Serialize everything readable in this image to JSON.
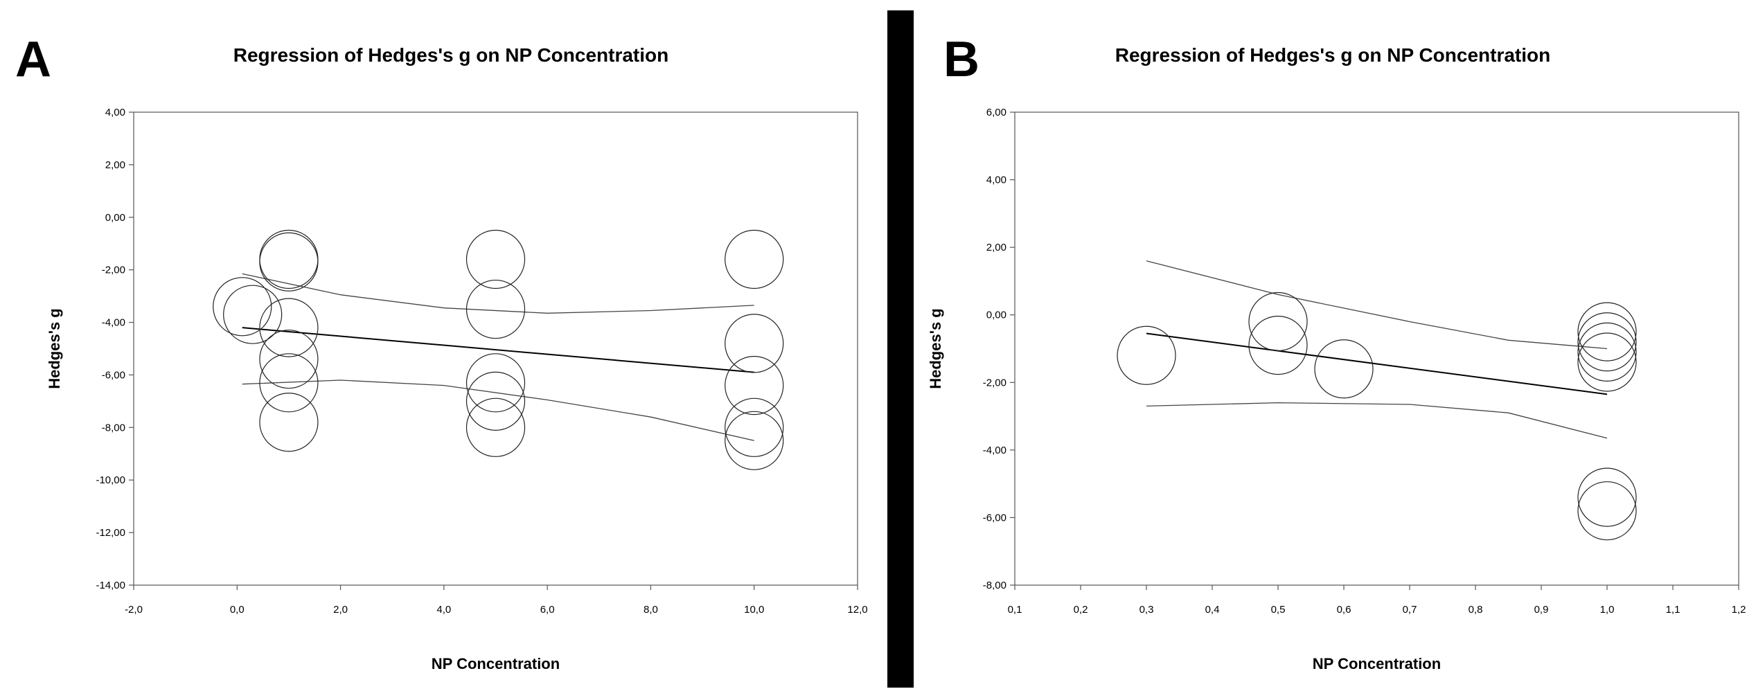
{
  "chart_data": [
    {
      "panel_label": "A",
      "type": "scatter",
      "title": "Regression of Hedges's g on NP Concentration",
      "xlabel": "NP Concentration",
      "ylabel": "Hedges's g",
      "xlim": [
        -2,
        12
      ],
      "ylim": [
        -14,
        4
      ],
      "x_ticks": [
        -2,
        0,
        2,
        4,
        6,
        8,
        10,
        12
      ],
      "x_tick_labels": [
        "-2,0",
        "0,0",
        "2,0",
        "4,0",
        "6,0",
        "8,0",
        "10,0",
        "12,0"
      ],
      "y_ticks": [
        4,
        2,
        0,
        -2,
        -4,
        -6,
        -8,
        -10,
        -12,
        -14
      ],
      "y_tick_labels": [
        "4,00",
        "2,00",
        "0,00",
        "-2,00",
        "-4,00",
        "-6,00",
        "-8,00",
        "-10,00",
        "-12,00",
        "-14,00"
      ],
      "points": [
        {
          "x": 0.1,
          "y": -3.4
        },
        {
          "x": 0.3,
          "y": -3.7
        },
        {
          "x": 1.0,
          "y": -1.6
        },
        {
          "x": 1.0,
          "y": -1.7
        },
        {
          "x": 1.0,
          "y": -4.2
        },
        {
          "x": 1.0,
          "y": -5.4
        },
        {
          "x": 1.0,
          "y": -6.3
        },
        {
          "x": 1.0,
          "y": -7.8
        },
        {
          "x": 5.0,
          "y": -1.6
        },
        {
          "x": 5.0,
          "y": -3.5
        },
        {
          "x": 5.0,
          "y": -6.3
        },
        {
          "x": 5.0,
          "y": -7.0
        },
        {
          "x": 5.0,
          "y": -8.0
        },
        {
          "x": 10.0,
          "y": -1.6
        },
        {
          "x": 10.0,
          "y": -4.8
        },
        {
          "x": 10.0,
          "y": -6.4
        },
        {
          "x": 10.0,
          "y": -8.0
        },
        {
          "x": 10.0,
          "y": -8.5
        }
      ],
      "regression_line": {
        "x": [
          0.1,
          10.0
        ],
        "y": [
          -4.2,
          -5.9
        ]
      },
      "ci_upper": {
        "x": [
          0.1,
          2.0,
          4.0,
          6.0,
          8.0,
          10.0
        ],
        "y": [
          -2.15,
          -2.95,
          -3.45,
          -3.65,
          -3.55,
          -3.35
        ]
      },
      "ci_lower": {
        "x": [
          0.1,
          2.0,
          4.0,
          6.0,
          8.0,
          10.0
        ],
        "y": [
          -6.35,
          -6.2,
          -6.4,
          -6.95,
          -7.6,
          -8.5
        ]
      }
    },
    {
      "panel_label": "B",
      "type": "scatter",
      "title": "Regression of Hedges's g on NP Concentration",
      "xlabel": "NP Concentration",
      "ylabel": "Hedges's g",
      "xlim": [
        0.1,
        1.2
      ],
      "ylim": [
        -8,
        6
      ],
      "x_ticks": [
        0.1,
        0.2,
        0.3,
        0.4,
        0.5,
        0.6,
        0.7,
        0.8,
        0.9,
        1.0,
        1.1,
        1.2
      ],
      "x_tick_labels": [
        "0,1",
        "0,2",
        "0,3",
        "0,4",
        "0,5",
        "0,6",
        "0,7",
        "0,8",
        "0,9",
        "1,0",
        "1,1",
        "1,2"
      ],
      "y_ticks": [
        6,
        4,
        2,
        0,
        -2,
        -4,
        -6,
        -8
      ],
      "y_tick_labels": [
        "6,00",
        "4,00",
        "2,00",
        "0,00",
        "-2,00",
        "-4,00",
        "-6,00",
        "-8,00"
      ],
      "points": [
        {
          "x": 0.3,
          "y": -1.2
        },
        {
          "x": 0.5,
          "y": -0.2
        },
        {
          "x": 0.5,
          "y": -0.9
        },
        {
          "x": 0.6,
          "y": -1.6
        },
        {
          "x": 1.0,
          "y": -0.5
        },
        {
          "x": 1.0,
          "y": -0.8
        },
        {
          "x": 1.0,
          "y": -1.1
        },
        {
          "x": 1.0,
          "y": -1.4
        },
        {
          "x": 1.0,
          "y": -5.4
        },
        {
          "x": 1.0,
          "y": -5.8
        }
      ],
      "regression_line": {
        "x": [
          0.3,
          1.0
        ],
        "y": [
          -0.55,
          -2.35
        ]
      },
      "ci_upper": {
        "x": [
          0.3,
          0.5,
          0.7,
          0.85,
          1.0
        ],
        "y": [
          1.6,
          0.6,
          -0.2,
          -0.75,
          -1.0
        ]
      },
      "ci_lower": {
        "x": [
          0.3,
          0.5,
          0.7,
          0.85,
          1.0
        ],
        "y": [
          -2.7,
          -2.6,
          -2.65,
          -2.9,
          -3.65
        ]
      }
    }
  ]
}
